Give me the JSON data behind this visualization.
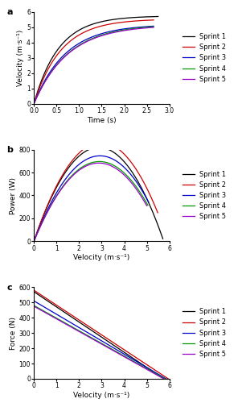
{
  "sprint_colors": [
    "#000000",
    "#cc0000",
    "#0000cc",
    "#009900",
    "#9900cc"
  ],
  "sprint_labels": [
    "Sprint 1",
    "Sprint 2",
    "Sprint 3",
    "Sprint 4",
    "Sprint 5"
  ],
  "panel_a": {
    "xlabel": "Time (s)",
    "ylabel": "Velocity (m·s⁻¹)",
    "xlim": [
      0,
      3.0
    ],
    "ylim": [
      0,
      6
    ],
    "xticks": [
      0.0,
      0.5,
      1.0,
      1.5,
      2.0,
      2.5,
      3.0
    ],
    "yticks": [
      0,
      1,
      2,
      3,
      4,
      5,
      6
    ],
    "v_max": [
      5.75,
      5.55,
      5.2,
      5.2,
      5.15
    ],
    "tau": [
      0.55,
      0.6,
      0.7,
      0.75,
      0.75
    ],
    "t_end": [
      2.75,
      2.65,
      2.65,
      2.65,
      2.65
    ]
  },
  "panel_b": {
    "xlabel": "Velocity (m·s⁻¹)",
    "ylabel": "Power (W)",
    "xlim": [
      0,
      6
    ],
    "ylim": [
      0,
      800
    ],
    "xticks": [
      0,
      1,
      2,
      3,
      4,
      5,
      6
    ],
    "yticks": [
      0,
      200,
      400,
      600,
      800
    ],
    "F0": [
      570,
      580,
      510,
      480,
      475
    ],
    "v_max": [
      5.75,
      5.95,
      5.85,
      5.8,
      5.75
    ],
    "v_max_t": [
      5.75,
      5.55,
      5.2,
      5.2,
      5.15
    ],
    "tau": [
      0.55,
      0.6,
      0.7,
      0.75,
      0.75
    ],
    "t_end": [
      2.75,
      2.65,
      2.65,
      2.65,
      2.65
    ]
  },
  "panel_c": {
    "xlabel": "Velocity (m·s⁻¹)",
    "ylabel": "Force (N)",
    "xlim": [
      0,
      6
    ],
    "ylim": [
      0,
      600
    ],
    "xticks": [
      0,
      1,
      2,
      3,
      4,
      5,
      6
    ],
    "yticks": [
      0,
      100,
      200,
      300,
      400,
      500,
      600
    ],
    "F0": [
      570,
      580,
      510,
      480,
      475
    ],
    "v_max": [
      5.75,
      5.95,
      5.85,
      5.8,
      5.75
    ]
  },
  "background_color": "#ffffff",
  "legend_fontsize": 6,
  "tick_fontsize": 5.5,
  "label_fontsize": 6.5,
  "linewidth": 0.9
}
